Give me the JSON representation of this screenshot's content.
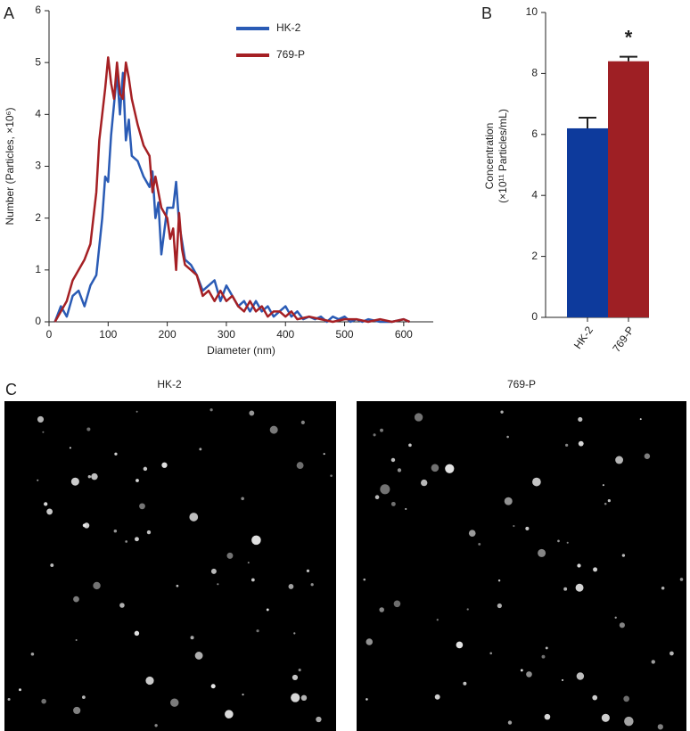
{
  "panel_labels": [
    "A",
    "B",
    "C"
  ],
  "chart_data": [
    {
      "type": "line",
      "xlabel": "Diameter (nm)",
      "ylabel": "Number (Particles, ×10⁶)",
      "xlim": [
        0,
        650
      ],
      "xticks": [
        0,
        100,
        200,
        300,
        400,
        500,
        600
      ],
      "ylim": [
        0,
        6
      ],
      "yticks": [
        0,
        1,
        2,
        3,
        4,
        5,
        6
      ],
      "legend": "top-center",
      "series": [
        {
          "name": "HK-2",
          "color": "#2a5bb5",
          "x": [
            10,
            20,
            30,
            40,
            50,
            60,
            70,
            80,
            90,
            95,
            100,
            105,
            110,
            115,
            120,
            125,
            130,
            135,
            140,
            150,
            160,
            170,
            175,
            180,
            185,
            190,
            200,
            210,
            215,
            220,
            230,
            240,
            250,
            260,
            270,
            280,
            290,
            300,
            310,
            320,
            330,
            340,
            350,
            360,
            370,
            380,
            390,
            400,
            410,
            420,
            430,
            440,
            450,
            460,
            470,
            480,
            490,
            500,
            510,
            520,
            530,
            540,
            560,
            580,
            600,
            610
          ],
          "values": [
            0,
            0.3,
            0.1,
            0.5,
            0.6,
            0.3,
            0.7,
            0.9,
            2.0,
            2.8,
            2.7,
            3.6,
            4.2,
            4.8,
            4.0,
            4.8,
            3.5,
            3.9,
            3.2,
            3.1,
            2.8,
            2.6,
            2.9,
            2.0,
            2.3,
            1.3,
            2.2,
            2.2,
            2.7,
            1.9,
            1.2,
            1.1,
            0.9,
            0.6,
            0.7,
            0.8,
            0.4,
            0.7,
            0.5,
            0.3,
            0.4,
            0.2,
            0.4,
            0.2,
            0.3,
            0.1,
            0.2,
            0.3,
            0.1,
            0.2,
            0.05,
            0.1,
            0.05,
            0.1,
            0,
            0.1,
            0.05,
            0.1,
            0,
            0.05,
            0,
            0.05,
            0,
            0,
            0.05,
            0
          ]
        },
        {
          "name": "769-P",
          "color": "#a52024",
          "x": [
            10,
            20,
            30,
            40,
            50,
            60,
            70,
            80,
            85,
            90,
            95,
            100,
            105,
            110,
            115,
            120,
            125,
            130,
            135,
            140,
            150,
            160,
            170,
            175,
            180,
            190,
            200,
            205,
            210,
            215,
            220,
            225,
            230,
            240,
            250,
            260,
            270,
            280,
            290,
            300,
            310,
            320,
            330,
            340,
            350,
            360,
            370,
            380,
            390,
            400,
            410,
            420,
            440,
            460,
            480,
            500,
            520,
            540,
            560,
            580,
            600,
            610
          ],
          "values": [
            0,
            0.2,
            0.4,
            0.8,
            1.0,
            1.2,
            1.5,
            2.5,
            3.5,
            4.0,
            4.5,
            5.1,
            4.6,
            4.3,
            5.0,
            4.4,
            4.3,
            5.0,
            4.7,
            4.3,
            3.8,
            3.4,
            3.2,
            2.5,
            2.8,
            2.2,
            2.0,
            1.6,
            1.8,
            1.0,
            2.1,
            1.4,
            1.1,
            1.0,
            0.9,
            0.5,
            0.6,
            0.4,
            0.6,
            0.4,
            0.5,
            0.3,
            0.2,
            0.4,
            0.2,
            0.3,
            0.1,
            0.2,
            0.2,
            0.1,
            0.2,
            0.05,
            0.1,
            0.05,
            0,
            0.05,
            0.05,
            0,
            0.05,
            0,
            0.05,
            0
          ]
        }
      ]
    },
    {
      "type": "bar",
      "ylabel": [
        "Concentration",
        "(×10¹¹ Particles/mL)"
      ],
      "categories": [
        "HK-2",
        "769-P"
      ],
      "values": [
        6.2,
        8.4
      ],
      "errors": [
        0.35,
        0.15
      ],
      "colors": [
        "#0d3a9c",
        "#9e1f24"
      ],
      "annotation": "*",
      "ylim": [
        0,
        10
      ],
      "yticks": [
        0,
        2,
        4,
        6,
        8,
        10
      ]
    }
  ],
  "images": [
    {
      "title": "HK-2"
    },
    {
      "title": "769-P"
    }
  ]
}
